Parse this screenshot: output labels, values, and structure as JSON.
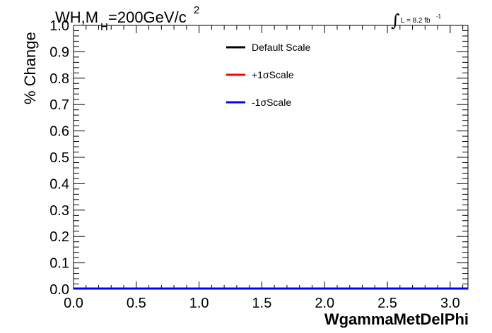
{
  "title": {
    "prefix": "WH,M",
    "subscript": "H",
    "mid": "=200GeV/c",
    "superscript": "2"
  },
  "luminosity": {
    "integral_symbol": "∫",
    "text": "L = 8.2 fb",
    "superscript": "-1"
  },
  "chart_data": {
    "type": "line",
    "xlabel": "WgammaMetDelPhi",
    "ylabel": "% Change",
    "xlim": [
      0.0,
      3.14159
    ],
    "ylim": [
      0.0,
      1.0
    ],
    "x_ticks": [
      "0.0",
      "0.5",
      "1.0",
      "1.5",
      "2.0",
      "2.5",
      "3.0"
    ],
    "x_tick_values": [
      0.0,
      0.5,
      1.0,
      1.5,
      2.0,
      2.5,
      3.0
    ],
    "y_ticks": [
      "0.0",
      "0.1",
      "0.2",
      "0.3",
      "0.4",
      "0.5",
      "0.6",
      "0.7",
      "0.8",
      "0.9",
      "1.0"
    ],
    "y_tick_values": [
      0.0,
      0.1,
      0.2,
      0.3,
      0.4,
      0.5,
      0.6,
      0.7,
      0.8,
      0.9,
      1.0
    ],
    "grid": false,
    "legend_position": "top-center",
    "series": [
      {
        "name": "Default Scale",
        "color": "#000000",
        "x": [
          0.0,
          3.14159
        ],
        "y": [
          0.0,
          0.0
        ]
      },
      {
        "name": "+1σScale",
        "color": "#ff0000",
        "x": [
          0.0,
          3.14159
        ],
        "y": [
          0.0,
          0.0
        ]
      },
      {
        "name": "-1σScale",
        "color": "#0000ff",
        "x": [
          0.0,
          3.14159
        ],
        "y": [
          0.0,
          0.0
        ]
      }
    ]
  }
}
